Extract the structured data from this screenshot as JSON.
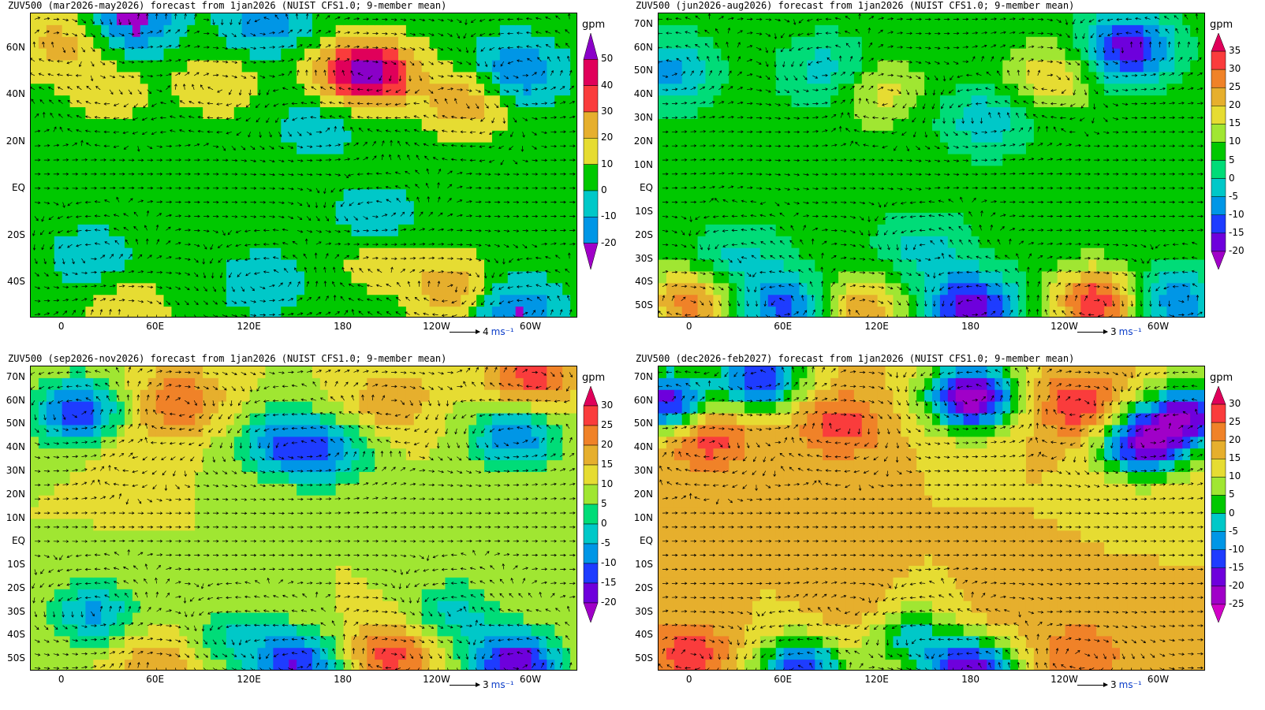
{
  "units_label": "gpm",
  "lon_ticks": [
    "0",
    "60E",
    "120E",
    "180",
    "120W",
    "60W"
  ],
  "colors": {
    "fill_scale": [
      "#a000c8",
      "#6e00dc",
      "#1e3cff",
      "#0096e6",
      "#00c8c8",
      "#00dc78",
      "#00c800",
      "#a0e632",
      "#e6dc32",
      "#e6af2d",
      "#f08228",
      "#fa3c3c",
      "#e0005a"
    ],
    "vector": "#000000",
    "coast": "#000000",
    "ref_unit": "#0a3cc8"
  },
  "panels": [
    {
      "id": "mam",
      "title": "ZUV500 (mar2026-may2026) forecast from 1jan2026 (NUIST CFS1.0; 9-member mean)",
      "lat_ticks": [
        "60N",
        "40N",
        "20N",
        "EQ",
        "20S",
        "40S"
      ],
      "lat_ticks_values": [
        60,
        40,
        20,
        0,
        -20,
        -40
      ],
      "levels": [
        "-20",
        "-10",
        "0",
        "10",
        "20",
        "30",
        "40",
        "50"
      ],
      "level_colors": [
        "#a000c8",
        "#0096e6",
        "#00c8c8",
        "#00c800",
        "#e6dc32",
        "#e6af2d",
        "#fa3c3c",
        "#e0005a",
        "#8a00c8"
      ],
      "ref_vector": {
        "value": "4",
        "unit": "ms⁻¹"
      },
      "chart_data": {
        "type": "heatmap",
        "variable": "ZUV500",
        "lat_range": [
          -55,
          75
        ],
        "lon_range": [
          -20,
          330
        ],
        "background": 5,
        "blobs": [
          {
            "lon": 45,
            "lat": 72,
            "value": -25
          },
          {
            "lon": 130,
            "lat": 70,
            "value": -15
          },
          {
            "lon": 200,
            "lat": 50,
            "value": 45
          },
          {
            "lon": 180,
            "lat": 48,
            "value": 25
          },
          {
            "lon": 290,
            "lat": 50,
            "value": -22
          },
          {
            "lon": 260,
            "lat": 38,
            "value": 30
          },
          {
            "lon": 100,
            "lat": 45,
            "value": 18
          },
          {
            "lon": 0,
            "lat": 62,
            "value": 25
          },
          {
            "lon": 30,
            "lat": 42,
            "value": 15
          },
          {
            "lon": 165,
            "lat": 28,
            "value": -8
          },
          {
            "lon": 20,
            "lat": -30,
            "value": -8
          },
          {
            "lon": 200,
            "lat": -12,
            "value": -8
          },
          {
            "lon": 130,
            "lat": -40,
            "value": -8
          },
          {
            "lon": 250,
            "lat": -42,
            "value": 28
          },
          {
            "lon": 290,
            "lat": -52,
            "value": -22
          },
          {
            "lon": 40,
            "lat": -52,
            "value": 20
          },
          {
            "lon": 200,
            "lat": -30,
            "value": 15
          }
        ]
      }
    },
    {
      "id": "jja",
      "title": "ZUV500 (jun2026-aug2026) forecast from 1jan2026 (NUIST CFS1.0; 9-member mean)",
      "lat_ticks": [
        "70N",
        "60N",
        "50N",
        "40N",
        "30N",
        "20N",
        "10N",
        "EQ",
        "10S",
        "20S",
        "30S",
        "40S",
        "50S"
      ],
      "lat_ticks_values": [
        70,
        60,
        50,
        40,
        30,
        20,
        10,
        0,
        -10,
        -20,
        -30,
        -40,
        -50
      ],
      "levels": [
        "-20",
        "-15",
        "-10",
        "-5",
        "0",
        "5",
        "10",
        "15",
        "20",
        "25",
        "30",
        "35"
      ],
      "level_colors": [
        "#a000c8",
        "#6e00dc",
        "#1e3cff",
        "#0096e6",
        "#00c8c8",
        "#00dc78",
        "#00c800",
        "#a0e632",
        "#e6dc32",
        "#e6af2d",
        "#f08228",
        "#fa3c3c",
        "#e0005a"
      ],
      "ref_vector": {
        "value": "3",
        "unit": "ms⁻¹"
      },
      "chart_data": {
        "type": "heatmap",
        "variable": "ZUV500",
        "lat_range": [
          -55,
          75
        ],
        "lon_range": [
          -20,
          330
        ],
        "background": 7,
        "blobs": [
          {
            "lon": 280,
            "lat": 60,
            "value": -18
          },
          {
            "lon": 90,
            "lat": 50,
            "value": -4
          },
          {
            "lon": 230,
            "lat": 48,
            "value": 20
          },
          {
            "lon": -15,
            "lat": 50,
            "value": -8
          },
          {
            "lon": 190,
            "lat": 30,
            "value": -4
          },
          {
            "lon": 120,
            "lat": 42,
            "value": 18
          },
          {
            "lon": 260,
            "lat": -48,
            "value": 35
          },
          {
            "lon": 0,
            "lat": -48,
            "value": 28
          },
          {
            "lon": 110,
            "lat": -52,
            "value": 25
          },
          {
            "lon": 180,
            "lat": -50,
            "value": -20
          },
          {
            "lon": 60,
            "lat": -50,
            "value": -12
          },
          {
            "lon": 310,
            "lat": -48,
            "value": -10
          },
          {
            "lon": 40,
            "lat": 0,
            "value": 8
          },
          {
            "lon": 150,
            "lat": -25,
            "value": -2
          },
          {
            "lon": 30,
            "lat": -30,
            "value": -2
          }
        ]
      }
    },
    {
      "id": "son",
      "title": "ZUV500 (sep2026-nov2026) forecast from 1jan2026 (NUIST CFS1.0; 9-member mean)",
      "lat_ticks": [
        "70N",
        "60N",
        "50N",
        "40N",
        "30N",
        "20N",
        "10N",
        "EQ",
        "10S",
        "20S",
        "30S",
        "40S",
        "50S"
      ],
      "lat_ticks_values": [
        70,
        60,
        50,
        40,
        30,
        20,
        10,
        0,
        -10,
        -20,
        -30,
        -40,
        -50
      ],
      "levels": [
        "-20",
        "-15",
        "-10",
        "-5",
        "0",
        "5",
        "10",
        "15",
        "20",
        "25",
        "30"
      ],
      "level_colors": [
        "#a000c8",
        "#6e00dc",
        "#1e3cff",
        "#0096e6",
        "#00c8c8",
        "#00dc78",
        "#a0e632",
        "#e6dc32",
        "#e6af2d",
        "#f08228",
        "#fa3c3c",
        "#e0005a"
      ],
      "ref_vector": {
        "value": "3",
        "unit": "ms⁻¹"
      },
      "chart_data": {
        "type": "heatmap",
        "variable": "ZUV500",
        "lat_range": [
          -55,
          75
        ],
        "lon_range": [
          -20,
          330
        ],
        "background": 10,
        "blobs": [
          {
            "lon": 10,
            "lat": 55,
            "value": -15
          },
          {
            "lon": 75,
            "lat": 60,
            "value": 25
          },
          {
            "lon": 140,
            "lat": 42,
            "value": -8
          },
          {
            "lon": 170,
            "lat": 38,
            "value": -6
          },
          {
            "lon": 210,
            "lat": 60,
            "value": 20
          },
          {
            "lon": 300,
            "lat": 70,
            "value": 28
          },
          {
            "lon": 290,
            "lat": 45,
            "value": -10
          },
          {
            "lon": 210,
            "lat": -48,
            "value": 28
          },
          {
            "lon": 290,
            "lat": -52,
            "value": -20
          },
          {
            "lon": 150,
            "lat": -52,
            "value": -15
          },
          {
            "lon": 60,
            "lat": -52,
            "value": 20
          },
          {
            "lon": 20,
            "lat": -30,
            "value": -6
          },
          {
            "lon": 250,
            "lat": -30,
            "value": -2
          },
          {
            "lon": 110,
            "lat": -40,
            "value": 0
          },
          {
            "lon": 40,
            "lat": 40,
            "value": 15
          }
        ]
      }
    },
    {
      "id": "djf",
      "title": "ZUV500 (dec2026-feb2027) forecast from 1jan2026 (NUIST CFS1.0; 9-member mean)",
      "lat_ticks": [
        "70N",
        "60N",
        "50N",
        "40N",
        "30N",
        "20N",
        "10N",
        "EQ",
        "10S",
        "20S",
        "30S",
        "40S",
        "50S"
      ],
      "lat_ticks_values": [
        70,
        60,
        50,
        40,
        30,
        20,
        10,
        0,
        -10,
        -20,
        -30,
        -40,
        -50
      ],
      "levels": [
        "-25",
        "-20",
        "-15",
        "-10",
        "-5",
        "0",
        "5",
        "10",
        "15",
        "20",
        "25",
        "30"
      ],
      "level_colors": [
        "#d200c8",
        "#a000c8",
        "#6e00dc",
        "#1e3cff",
        "#0096e6",
        "#00c8c8",
        "#00c800",
        "#a0e632",
        "#e6dc32",
        "#e6af2d",
        "#f08228",
        "#fa3c3c",
        "#e0005a"
      ],
      "ref_vector": {
        "value": "3",
        "unit": "ms⁻¹"
      },
      "chart_data": {
        "type": "heatmap",
        "variable": "ZUV500",
        "lat_range": [
          -55,
          75
        ],
        "lon_range": [
          -20,
          330
        ],
        "background": 15,
        "blobs": [
          {
            "lon": 10,
            "lat": 45,
            "value": 30
          },
          {
            "lon": 95,
            "lat": 50,
            "value": 28
          },
          {
            "lon": 250,
            "lat": 58,
            "value": 30
          },
          {
            "lon": 180,
            "lat": 62,
            "value": -25
          },
          {
            "lon": -15,
            "lat": 60,
            "value": -18
          },
          {
            "lon": 45,
            "lat": 70,
            "value": -15
          },
          {
            "lon": 290,
            "lat": 42,
            "value": -20
          },
          {
            "lon": 320,
            "lat": 55,
            "value": -15
          },
          {
            "lon": 0,
            "lat": -48,
            "value": 28
          },
          {
            "lon": 250,
            "lat": -48,
            "value": 25
          },
          {
            "lon": 180,
            "lat": -55,
            "value": -20
          },
          {
            "lon": 70,
            "lat": -55,
            "value": -15
          },
          {
            "lon": 140,
            "lat": -40,
            "value": -2
          },
          {
            "lon": 200,
            "lat": -28,
            "value": 18
          },
          {
            "lon": 110,
            "lat": -30,
            "value": 20
          }
        ]
      }
    }
  ]
}
